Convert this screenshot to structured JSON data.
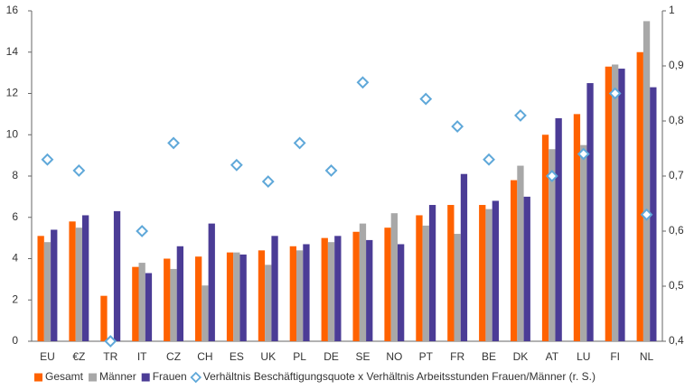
{
  "chart_data": {
    "type": "bar",
    "categories": [
      "EU",
      "€Z",
      "TR",
      "IT",
      "CZ",
      "CH",
      "ES",
      "UK",
      "PL",
      "DE",
      "SE",
      "NO",
      "PT",
      "FR",
      "BE",
      "DK",
      "AT",
      "LU",
      "FI",
      "NL"
    ],
    "series": [
      {
        "name": "Gesamt",
        "color": "#ff6200",
        "values": [
          5.1,
          5.8,
          2.2,
          3.6,
          4.0,
          4.1,
          4.3,
          4.4,
          4.6,
          5.0,
          5.3,
          5.5,
          6.1,
          6.6,
          6.6,
          7.8,
          10.0,
          11.0,
          13.3,
          14.0
        ]
      },
      {
        "name": "Männer",
        "color": "#a8a8a8",
        "values": [
          4.8,
          5.5,
          null,
          3.8,
          3.5,
          2.7,
          4.3,
          3.7,
          4.4,
          4.8,
          5.7,
          6.2,
          5.6,
          5.2,
          6.4,
          8.5,
          9.3,
          9.5,
          13.4,
          15.5
        ]
      },
      {
        "name": "Frauen",
        "color": "#4b3c96",
        "values": [
          5.4,
          6.1,
          6.3,
          3.3,
          4.6,
          5.7,
          4.2,
          5.1,
          4.7,
          5.1,
          4.9,
          4.7,
          6.6,
          8.1,
          6.8,
          7.0,
          10.8,
          12.5,
          13.2,
          12.3
        ]
      },
      {
        "name": "Verhältnis Beschäftigungsquote x Verhältnis Arbeitsstunden Frauen/Männer (r. S.)",
        "color": "#5fa8d9",
        "type": "scatter",
        "axis": "y2",
        "values": [
          0.73,
          0.71,
          0.4,
          0.6,
          0.76,
          null,
          0.72,
          0.69,
          0.76,
          0.71,
          0.87,
          null,
          0.84,
          0.79,
          0.73,
          0.81,
          0.7,
          0.74,
          0.85,
          0.63
        ]
      }
    ],
    "ylim": [
      0,
      16
    ],
    "yticks": [
      0,
      2,
      4,
      6,
      8,
      10,
      12,
      14,
      16
    ],
    "y2lim": [
      0.4,
      1
    ],
    "y2ticks": [
      {
        "value": 0.4,
        "label": "0,4"
      },
      {
        "value": 0.5,
        "label": "0,5"
      },
      {
        "value": 0.6,
        "label": "0,6"
      },
      {
        "value": 0.7,
        "label": "0,7"
      },
      {
        "value": 0.8,
        "label": "0,8"
      },
      {
        "value": 0.9,
        "label": "0,9"
      },
      1
    ],
    "grid": false
  }
}
